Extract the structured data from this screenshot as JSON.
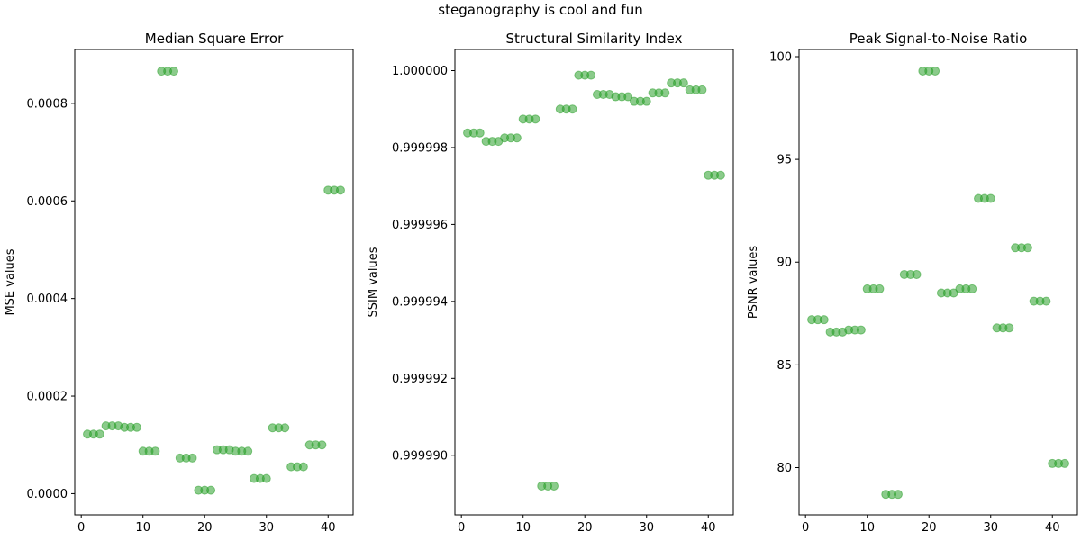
{
  "figure": {
    "suptitle": "steganography is cool and fun"
  },
  "chart_data": [
    {
      "type": "scatter",
      "title": "Median Square Error",
      "xlabel": "",
      "ylabel": "MSE values",
      "xlim": [
        -1.05,
        44.05
      ],
      "ylim": [
        -4.35e-05,
        0.0009105
      ],
      "xticks": [
        0,
        10,
        20,
        30,
        40
      ],
      "yticks": [
        0.0,
        0.0002,
        0.0004,
        0.0006,
        0.0008
      ],
      "ytick_labels": [
        "0.0000",
        "0.0002",
        "0.0004",
        "0.0006",
        "0.0008"
      ],
      "marker_color": "#2ca02c",
      "marker_alpha": 0.55,
      "x": [
        1,
        2,
        3,
        4,
        5,
        6,
        7,
        8,
        9,
        10,
        11,
        12,
        13,
        14,
        15,
        16,
        17,
        18,
        19,
        20,
        21,
        22,
        23,
        24,
        25,
        26,
        27,
        28,
        29,
        30,
        31,
        32,
        33,
        34,
        35,
        36,
        37,
        38,
        39,
        40,
        41,
        42
      ],
      "y": [
        0.000122,
        0.000122,
        0.000122,
        0.000139,
        0.000139,
        0.000139,
        0.000136,
        0.000136,
        0.000136,
        8.7e-05,
        8.7e-05,
        8.7e-05,
        0.000866,
        0.000866,
        0.000866,
        7.3e-05,
        7.3e-05,
        7.3e-05,
        7e-06,
        7e-06,
        7e-06,
        9e-05,
        9e-05,
        9e-05,
        8.7e-05,
        8.7e-05,
        8.7e-05,
        3.1e-05,
        3.1e-05,
        3.1e-05,
        0.000135,
        0.000135,
        0.000135,
        5.5e-05,
        5.5e-05,
        5.5e-05,
        0.0001,
        0.0001,
        0.0001,
        0.000622,
        0.000622,
        0.000622
      ]
    },
    {
      "type": "scatter",
      "title": "Structural Similarity Index",
      "xlabel": "",
      "ylabel": "SSIM values",
      "xlim": [
        -1.05,
        44.05
      ],
      "ylim": [
        0.99998845,
        1.00000055
      ],
      "xticks": [
        0,
        10,
        20,
        30,
        40
      ],
      "yticks": [
        0.99999,
        0.999992,
        0.999994,
        0.999996,
        0.999998,
        1.0
      ],
      "ytick_labels": [
        "0.999990",
        "0.999992",
        "0.999994",
        "0.999996",
        "0.999998",
        "1.000000"
      ],
      "marker_color": "#2ca02c",
      "marker_alpha": 0.55,
      "x": [
        1,
        2,
        3,
        4,
        5,
        6,
        7,
        8,
        9,
        10,
        11,
        12,
        13,
        14,
        15,
        16,
        17,
        18,
        19,
        20,
        21,
        22,
        23,
        24,
        25,
        26,
        27,
        28,
        29,
        30,
        31,
        32,
        33,
        34,
        35,
        36,
        37,
        38,
        39,
        40,
        41,
        42
      ],
      "y": [
        0.99999838,
        0.99999838,
        0.99999838,
        0.99999816,
        0.99999816,
        0.99999816,
        0.99999825,
        0.99999825,
        0.99999825,
        0.99999874,
        0.99999874,
        0.99999874,
        0.9999892,
        0.9999892,
        0.9999892,
        0.999999,
        0.999999,
        0.999999,
        0.99999988,
        0.99999988,
        0.99999988,
        0.99999938,
        0.99999938,
        0.99999938,
        0.99999932,
        0.99999932,
        0.99999932,
        0.9999992,
        0.9999992,
        0.9999992,
        0.99999942,
        0.99999942,
        0.99999942,
        0.99999968,
        0.99999968,
        0.99999968,
        0.9999995,
        0.9999995,
        0.9999995,
        0.99999728,
        0.99999728,
        0.99999728
      ]
    },
    {
      "type": "scatter",
      "title": "Peak Signal-to-Noise Ratio",
      "xlabel": "",
      "ylabel": "PSNR values",
      "xlim": [
        -1.05,
        44.05
      ],
      "ylim": [
        77.7,
        100.35
      ],
      "xticks": [
        0,
        10,
        20,
        30,
        40
      ],
      "yticks": [
        80,
        85,
        90,
        95,
        100
      ],
      "ytick_labels": [
        "80",
        "85",
        "90",
        "95",
        "100"
      ],
      "marker_color": "#2ca02c",
      "marker_alpha": 0.55,
      "x": [
        1,
        2,
        3,
        4,
        5,
        6,
        7,
        8,
        9,
        10,
        11,
        12,
        13,
        14,
        15,
        16,
        17,
        18,
        19,
        20,
        21,
        22,
        23,
        24,
        25,
        26,
        27,
        28,
        29,
        30,
        31,
        32,
        33,
        34,
        35,
        36,
        37,
        38,
        39,
        40,
        41,
        42
      ],
      "y": [
        87.2,
        87.2,
        87.2,
        86.6,
        86.6,
        86.6,
        86.7,
        86.7,
        86.7,
        88.7,
        88.7,
        88.7,
        78.7,
        78.7,
        78.7,
        89.4,
        89.4,
        89.4,
        99.3,
        99.3,
        99.3,
        88.5,
        88.5,
        88.5,
        88.7,
        88.7,
        88.7,
        93.1,
        93.1,
        93.1,
        86.8,
        86.8,
        86.8,
        90.7,
        90.7,
        90.7,
        88.1,
        88.1,
        88.1,
        80.2,
        80.2,
        80.2
      ]
    }
  ]
}
